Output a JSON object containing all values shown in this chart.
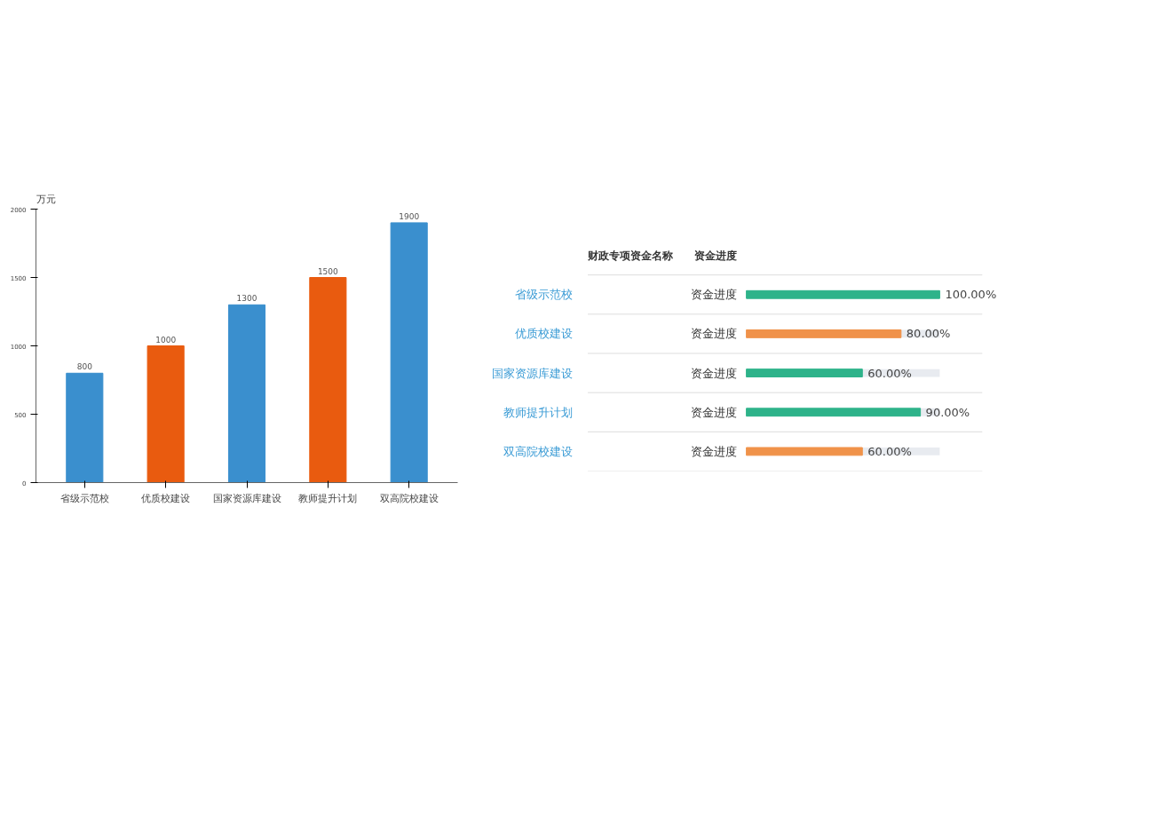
{
  "chart_data": [
    {
      "type": "bar",
      "ylabel": "万元",
      "categories": [
        "省级示范校",
        "优质校建设",
        "国家资源库建设",
        "教师提升计划",
        "双高院校建设"
      ],
      "values": [
        800,
        1000,
        1300,
        1500,
        1900
      ],
      "colors": [
        "#3a8fce",
        "#e95b0f",
        "#3a8fce",
        "#e95b0f",
        "#3a8fce"
      ],
      "ylim": [
        0,
        2000
      ],
      "yticks": [
        0,
        500,
        1000,
        1500,
        2000
      ],
      "data_labels": true
    },
    {
      "type": "bar",
      "orientation": "horizontal",
      "categories": [
        "省级示范校",
        "优质校建设",
        "国家资源库建设",
        "教师提升计划",
        "双高院校建设"
      ],
      "values": [
        100,
        80,
        60,
        90,
        60
      ],
      "colors": [
        "#2eb38a",
        "#f0924a",
        "#2eb38a",
        "#2eb38a",
        "#f0924a"
      ],
      "value_labels": [
        "100.00%",
        "80.00%",
        "60.00%",
        "90.00%",
        "60.00%"
      ],
      "tick_labels": "y",
      "annotations": [
        "财政专项资金名称",
        "资金进度",
        "资金进度",
        "资金进度",
        "资金进度",
        "资金进度",
        "资金进度"
      ]
    }
  ]
}
